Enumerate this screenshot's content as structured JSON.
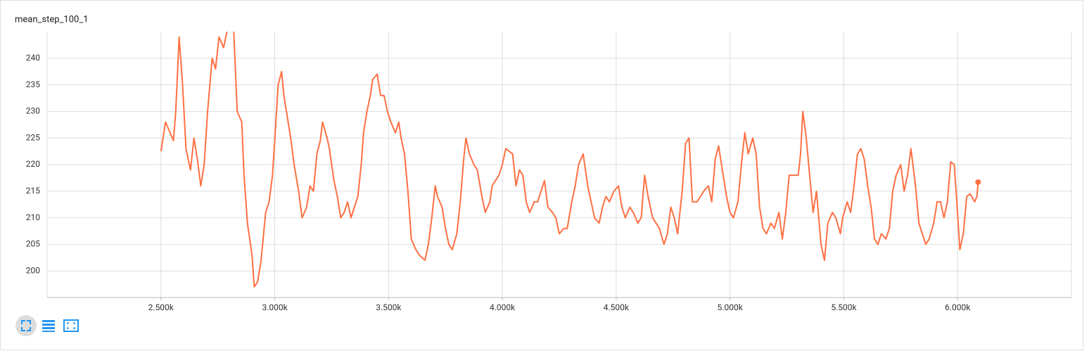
{
  "chart_data": {
    "type": "line",
    "title": "mean_step_100_1",
    "x": [
      2500,
      2520,
      2540,
      2555,
      2565,
      2580,
      2595,
      2610,
      2630,
      2645,
      2660,
      2675,
      2690,
      2705,
      2725,
      2740,
      2755,
      2775,
      2795,
      2820,
      2835,
      2855,
      2865,
      2880,
      2900,
      2910,
      2925,
      2940,
      2960,
      2975,
      2990,
      3005,
      3015,
      3030,
      3040,
      3055,
      3070,
      3085,
      3105,
      3120,
      3140,
      3155,
      3170,
      3185,
      3200,
      3210,
      3230,
      3240,
      3260,
      3275,
      3290,
      3305,
      3320,
      3335,
      3350,
      3365,
      3380,
      3390,
      3405,
      3420,
      3430,
      3450,
      3465,
      3480,
      3495,
      3510,
      3530,
      3545,
      3555,
      3570,
      3585,
      3600,
      3620,
      3635,
      3660,
      3675,
      3690,
      3705,
      3715,
      3735,
      3750,
      3765,
      3780,
      3800,
      3815,
      3830,
      3840,
      3855,
      3875,
      3890,
      3910,
      3925,
      3945,
      3955,
      3970,
      3985,
      4000,
      4015,
      4030,
      4045,
      4060,
      4075,
      4090,
      4105,
      4120,
      4140,
      4155,
      4170,
      4185,
      4200,
      4220,
      4235,
      4250,
      4270,
      4285,
      4305,
      4320,
      4335,
      4355,
      4375,
      4390,
      4405,
      4425,
      4440,
      4455,
      4470,
      4490,
      4510,
      4525,
      4540,
      4560,
      4575,
      4595,
      4610,
      4625,
      4640,
      4660,
      4675,
      4690,
      4710,
      4725,
      4740,
      4755,
      4770,
      4790,
      4805,
      4820,
      4835,
      4855,
      4870,
      4885,
      4905,
      4920,
      4935,
      4950,
      4970,
      4985,
      5000,
      5015,
      5035,
      5050,
      5065,
      5080,
      5100,
      5115,
      5130,
      5145,
      5160,
      5180,
      5195,
      5215,
      5230,
      5245,
      5260,
      5280,
      5300,
      5310,
      5320,
      5335,
      5350,
      5365,
      5380,
      5400,
      5415,
      5430,
      5450,
      5465,
      5485,
      5495,
      5515,
      5530,
      5545,
      5560,
      5575,
      5590,
      5605,
      5620,
      5635,
      5650,
      5665,
      5685,
      5700,
      5715,
      5730,
      5750,
      5765,
      5780,
      5795,
      5815,
      5830,
      5845,
      5860,
      5875,
      5895,
      5910,
      5925,
      5940,
      5955,
      5970,
      5985,
      5995,
      6010,
      6025,
      6040,
      6055,
      6075,
      6085,
      6090
    ],
    "series": [
      {
        "color": "#ff7043",
        "values": [
          222.5,
          228,
          226,
          224.5,
          230,
          244,
          235,
          223,
          219,
          225,
          221,
          216,
          220,
          230,
          240,
          238,
          244,
          242,
          246,
          245,
          230,
          228,
          218,
          209,
          203,
          197,
          198,
          202,
          211,
          213,
          218,
          228,
          235,
          237.5,
          233,
          229,
          225,
          220,
          215,
          210,
          212,
          216,
          215,
          222,
          224.5,
          228,
          225,
          223,
          217,
          214,
          210,
          211,
          213,
          210,
          212,
          214,
          220,
          226,
          230,
          233,
          236,
          237,
          233,
          233,
          230,
          228,
          226,
          228,
          225,
          222,
          215,
          206,
          204,
          203,
          202,
          205,
          210,
          216,
          214,
          212,
          208,
          205,
          204,
          207,
          213,
          221,
          225,
          222,
          220,
          219,
          214,
          211,
          213,
          216,
          217,
          218,
          220,
          223,
          222.5,
          222,
          216,
          219,
          218,
          213,
          211,
          213,
          213,
          215,
          217,
          212,
          211,
          210,
          207,
          208,
          208,
          213,
          216,
          220,
          222,
          216,
          213,
          210,
          209,
          212,
          214,
          213,
          215,
          216,
          212,
          210,
          212,
          211,
          209,
          210,
          218,
          214,
          210,
          209,
          208,
          205,
          207,
          212,
          210,
          207,
          215,
          224,
          225,
          213,
          213,
          214,
          215,
          216,
          213,
          221,
          223.5,
          218,
          214,
          211,
          210,
          213,
          220,
          226,
          222,
          225,
          222,
          212,
          208,
          207,
          209,
          208,
          211,
          206,
          211,
          218,
          218,
          218,
          222,
          230,
          225,
          218,
          211,
          215,
          205,
          202,
          209,
          211,
          210,
          207,
          210,
          213,
          211,
          216,
          222,
          223,
          221,
          216,
          212,
          206,
          205,
          207,
          206,
          208,
          215,
          218,
          220,
          215,
          218,
          223,
          216,
          209,
          207,
          205,
          206,
          209,
          213,
          213,
          210,
          213,
          220.5,
          220,
          214,
          204,
          207,
          214,
          214.5,
          213,
          214,
          216.7
        ]
      }
    ],
    "xlim": [
      2000,
      6500
    ],
    "xticks": [
      {
        "value": 2500,
        "label": "2.500k"
      },
      {
        "value": 3000,
        "label": "3.000k"
      },
      {
        "value": 3500,
        "label": "3.500k"
      },
      {
        "value": 4000,
        "label": "4.000k"
      },
      {
        "value": 4500,
        "label": "4.500k"
      },
      {
        "value": 5000,
        "label": "5.000k"
      },
      {
        "value": 5500,
        "label": "5.500k"
      },
      {
        "value": 6000,
        "label": "6.000k"
      }
    ],
    "ylim": [
      195,
      245
    ],
    "yticks": [
      200,
      205,
      210,
      215,
      220,
      225,
      230,
      235,
      240
    ],
    "grid": true
  }
}
